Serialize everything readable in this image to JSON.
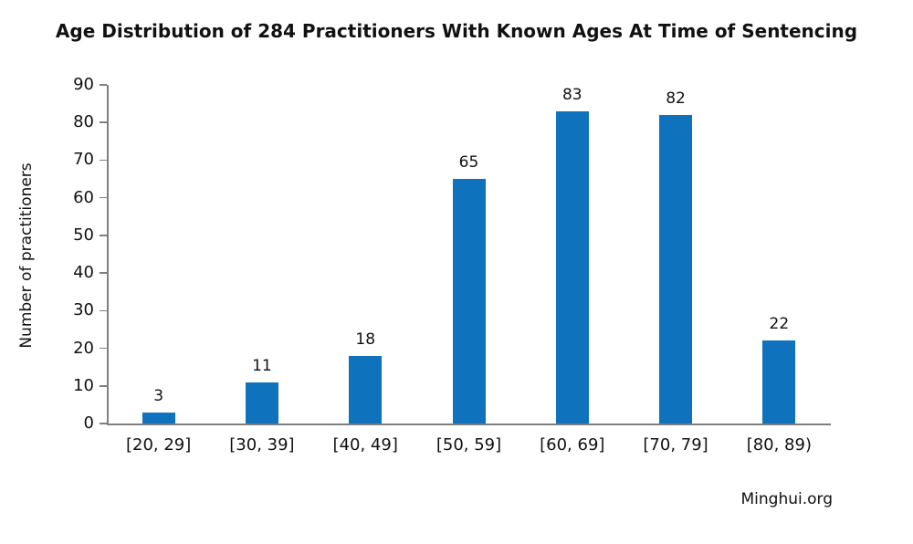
{
  "chart_data": {
    "type": "bar",
    "title": "Age Distribution of 284 Practitioners With Known Ages At Time of Sentencing",
    "categories": [
      "[20, 29]",
      "[30, 39]",
      "[40, 49]",
      "[50, 59]",
      "[60, 69]",
      "[70, 79]",
      "[80, 89)"
    ],
    "values": [
      3,
      11,
      18,
      65,
      83,
      82,
      22
    ],
    "xlabel": "",
    "ylabel": "Number of practitioners",
    "ylim": [
      0,
      90
    ],
    "ytick_step": 10,
    "value_labels_shown": true,
    "grid": false,
    "legend": false,
    "bar_color": "#0e72bd",
    "axis_color": "#7f7f7f",
    "text_color": "#111111"
  },
  "source": {
    "label": "Minghui.org"
  }
}
